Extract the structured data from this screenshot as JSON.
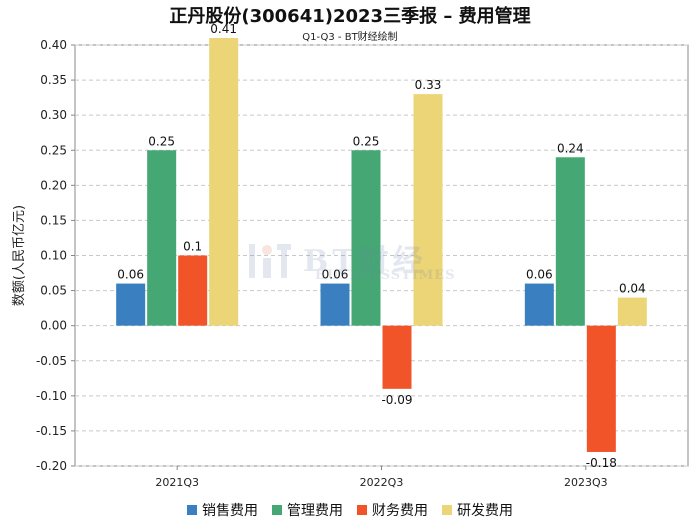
{
  "chart_data": {
    "type": "bar",
    "title": "正丹股份(300641)2023三季报 – 费用管理",
    "subtitle": "Q1-Q3 - BT财经绘制",
    "ylabel": "数额(人民币亿元)",
    "xlabel": "",
    "categories": [
      "2021Q3",
      "2022Q3",
      "2023Q3"
    ],
    "series": [
      {
        "name": "销售费用",
        "color": "#3a80c0",
        "values": [
          0.06,
          0.06,
          0.06
        ]
      },
      {
        "name": "管理费用",
        "color": "#45a874",
        "values": [
          0.25,
          0.25,
          0.24
        ]
      },
      {
        "name": "财务费用",
        "color": "#f05428",
        "values": [
          0.1,
          -0.09,
          -0.18
        ]
      },
      {
        "name": "研发费用",
        "color": "#ecd576",
        "values": [
          0.41,
          0.33,
          0.04
        ]
      }
    ],
    "value_labels": [
      [
        "0.06",
        "0.25",
        "0.1",
        "0.41"
      ],
      [
        "0.06",
        "0.25",
        "-0.09",
        "0.33"
      ],
      [
        "0.06",
        "0.24",
        "-0.18",
        "0.04"
      ]
    ],
    "ylim": [
      -0.2,
      0.4
    ],
    "yticks": [
      0.4,
      0.35,
      0.3,
      0.25,
      0.2,
      0.15,
      0.1,
      0.05,
      0.0,
      -0.05,
      -0.1,
      -0.15,
      -0.2
    ],
    "ytick_labels": [
      "0.40",
      "0.35",
      "0.30",
      "0.25",
      "0.20",
      "0.15",
      "0.10",
      "0.05",
      "0.00",
      "-0.05",
      "-0.10",
      "-0.15",
      "-0.20"
    ],
    "grid": true,
    "legend_position": "bottom"
  },
  "watermark": {
    "main": "BT财经",
    "sub": "BUSINESSTIMES"
  }
}
